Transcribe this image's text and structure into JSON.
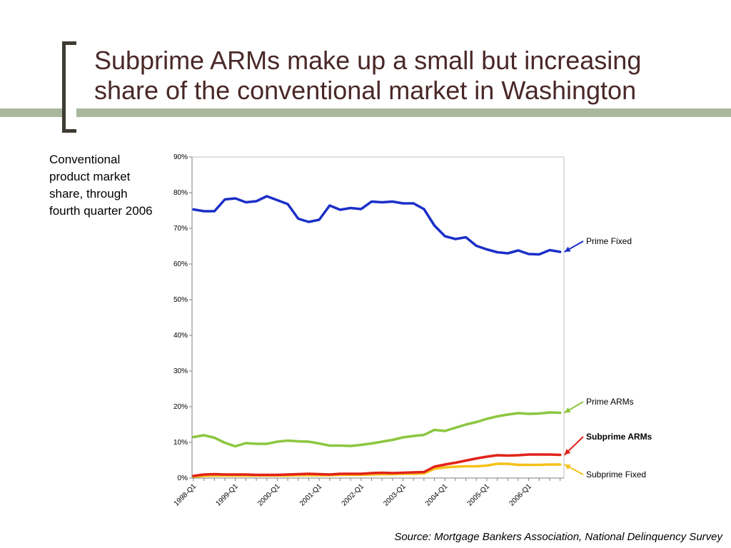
{
  "slide": {
    "title_lines": [
      "Subprime ARMs make up a small but increasing",
      "share of the conventional market in Washington"
    ],
    "side_note": "Conventional product market share, through fourth quarter 2006",
    "source": "Source: Mortgage Bankers Association, National Delinquency Survey"
  },
  "chart_data": {
    "type": "line",
    "x": [
      "1998-Q1",
      "1998-Q2",
      "1998-Q3",
      "1998-Q4",
      "1999-Q1",
      "1999-Q2",
      "1999-Q3",
      "1999-Q4",
      "2000-Q1",
      "2000-Q2",
      "2000-Q3",
      "2000-Q4",
      "2001-Q1",
      "2001-Q2",
      "2001-Q3",
      "2001-Q4",
      "2002-Q1",
      "2002-Q2",
      "2002-Q3",
      "2002-Q4",
      "2003-Q1",
      "2003-Q2",
      "2003-Q3",
      "2003-Q4",
      "2004-Q1",
      "2004-Q2",
      "2004-Q3",
      "2004-Q4",
      "2005-Q1",
      "2005-Q2",
      "2005-Q3",
      "2005-Q4",
      "2006-Q1",
      "2006-Q2",
      "2006-Q3",
      "2006-Q4"
    ],
    "x_tick_labels": [
      "1998-Q1",
      "1999-Q1",
      "2000-Q1",
      "2001-Q1",
      "2002-Q1",
      "2003-Q1",
      "2004-Q1",
      "2005-Q1",
      "2006-Q1"
    ],
    "y_tick_labels": [
      "0%",
      "10%",
      "20%",
      "30%",
      "40%",
      "50%",
      "60%",
      "70%",
      "80%",
      "90%"
    ],
    "ylim": [
      0,
      90
    ],
    "grid": false,
    "series": [
      {
        "name": "Prime Fixed",
        "color": "#1b2fc8",
        "bold": false,
        "values": [
          75.3,
          74.8,
          74.8,
          78.1,
          78.4,
          77.3,
          77.6,
          79.0,
          77.9,
          76.8,
          72.7,
          71.8,
          72.4,
          76.4,
          75.2,
          75.7,
          75.4,
          77.5,
          77.3,
          77.5,
          77.0,
          77.0,
          75.4,
          70.8,
          67.8,
          67.0,
          67.5,
          65.1,
          64.1,
          63.3,
          63.0,
          63.8,
          62.8,
          62.7,
          63.9,
          63.4
        ]
      },
      {
        "name": "Prime ARMs",
        "color": "#8cc63f",
        "bold": false,
        "values": [
          11.5,
          12.0,
          11.3,
          9.9,
          8.9,
          9.8,
          9.6,
          9.6,
          10.2,
          10.5,
          10.3,
          10.2,
          9.7,
          9.1,
          9.1,
          9.0,
          9.3,
          9.7,
          10.2,
          10.7,
          11.4,
          11.8,
          12.1,
          13.5,
          13.2,
          14.1,
          15.0,
          15.7,
          16.6,
          17.3,
          17.8,
          18.2,
          18.0,
          18.1,
          18.4,
          18.3
        ]
      },
      {
        "name": "Subprime ARMs",
        "color": "#e12219",
        "bold": true,
        "values": [
          0.6,
          1.0,
          1.1,
          1.0,
          1.0,
          1.0,
          0.9,
          0.9,
          0.9,
          1.0,
          1.1,
          1.2,
          1.1,
          1.0,
          1.2,
          1.2,
          1.2,
          1.4,
          1.5,
          1.4,
          1.5,
          1.6,
          1.7,
          3.2,
          3.8,
          4.3,
          4.9,
          5.5,
          6.0,
          6.4,
          6.3,
          6.4,
          6.6,
          6.6,
          6.6,
          6.5
        ]
      },
      {
        "name": "Subprime Fixed",
        "color": "#f5c11a",
        "bold": false,
        "values": [
          0.4,
          0.6,
          0.7,
          0.7,
          0.7,
          0.7,
          0.7,
          0.7,
          0.7,
          0.7,
          0.8,
          0.8,
          0.8,
          0.8,
          0.9,
          0.9,
          0.9,
          1.0,
          1.1,
          1.1,
          1.2,
          1.2,
          1.3,
          2.6,
          3.0,
          3.2,
          3.3,
          3.3,
          3.5,
          4.0,
          4.0,
          3.7,
          3.7,
          3.7,
          3.8,
          3.8
        ]
      }
    ]
  }
}
